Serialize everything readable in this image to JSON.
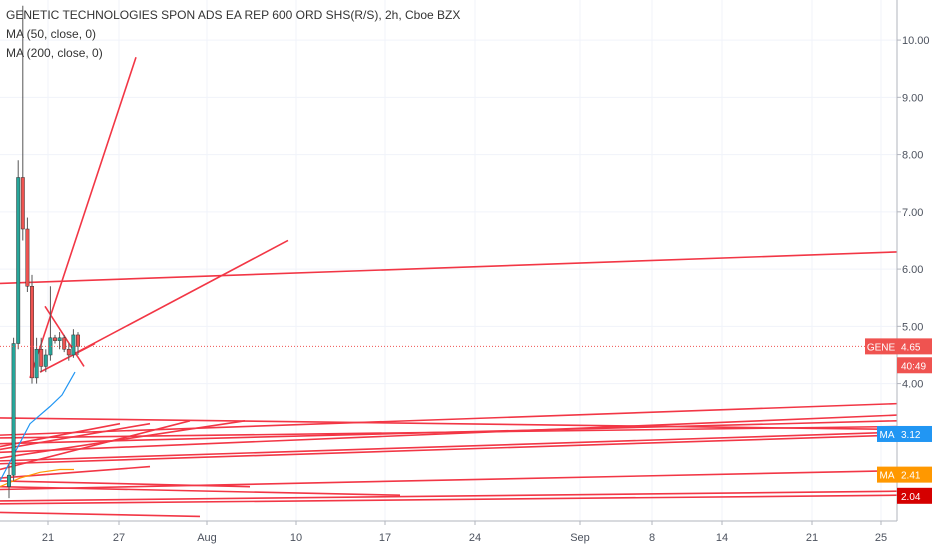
{
  "header": {
    "title": "GENETIC TECHNOLOGIES SPON ADS EA REP 600 ORD SHS(R/S), 2h, Cboe BZX",
    "indicators": [
      "MA (50, close, 0)",
      "MA (200, close, 0)"
    ]
  },
  "chart_data": {
    "type": "candlestick",
    "y_axis": {
      "ticks": [
        "10.00",
        "9.00",
        "8.00",
        "7.00",
        "6.00",
        "5.00",
        "4.00"
      ],
      "tick_values": [
        10,
        9,
        8,
        7,
        6,
        5,
        4
      ],
      "range": [
        1.6,
        10.7
      ]
    },
    "x_axis": {
      "ticks": [
        "21",
        "27",
        "Aug",
        "10",
        "17",
        "24",
        "Sep",
        "8",
        "14",
        "21",
        "25"
      ]
    },
    "last_price": 4.65,
    "price_line_value": 4.65,
    "price_labels": [
      {
        "prefix": "GENE",
        "text": "4.65",
        "value": 4.65,
        "color": "#ef5350"
      },
      {
        "prefix": "",
        "text": "40:49",
        "value": 4.32,
        "color": "#ef5350"
      },
      {
        "prefix": "MA",
        "text": "3.12",
        "value": 3.12,
        "color": "#2196f3"
      },
      {
        "prefix": "MA",
        "text": "2.41",
        "value": 2.41,
        "color": "#ff9800"
      },
      {
        "prefix": "",
        "text": "2.04",
        "value": 2.04,
        "color": "#d50000"
      }
    ],
    "candles": [
      {
        "o": 2.2,
        "h": 2.6,
        "l": 2.0,
        "c": 2.4
      },
      {
        "o": 2.4,
        "h": 4.8,
        "l": 2.3,
        "c": 4.7
      },
      {
        "o": 4.7,
        "h": 7.9,
        "l": 4.6,
        "c": 7.6
      },
      {
        "o": 7.6,
        "h": 10.6,
        "l": 6.5,
        "c": 6.7
      },
      {
        "o": 6.7,
        "h": 6.9,
        "l": 5.6,
        "c": 5.7
      },
      {
        "o": 5.7,
        "h": 5.9,
        "l": 4.0,
        "c": 4.1
      },
      {
        "o": 4.1,
        "h": 4.8,
        "l": 4.0,
        "c": 4.6
      },
      {
        "o": 4.6,
        "h": 4.8,
        "l": 4.2,
        "c": 4.3
      },
      {
        "o": 4.3,
        "h": 4.6,
        "l": 4.2,
        "c": 4.5
      },
      {
        "o": 4.5,
        "h": 5.7,
        "l": 4.4,
        "c": 4.8
      },
      {
        "o": 4.8,
        "h": 4.85,
        "l": 4.7,
        "c": 4.75
      },
      {
        "o": 4.75,
        "h": 4.9,
        "l": 4.6,
        "c": 4.8
      },
      {
        "o": 4.8,
        "h": 4.85,
        "l": 4.55,
        "c": 4.6
      },
      {
        "o": 4.6,
        "h": 4.7,
        "l": 4.4,
        "c": 4.5
      },
      {
        "o": 4.5,
        "h": 4.95,
        "l": 4.45,
        "c": 4.85
      },
      {
        "o": 4.85,
        "h": 4.9,
        "l": 4.5,
        "c": 4.65
      }
    ],
    "ma50": [
      [
        0,
        2.3
      ],
      [
        12,
        2.7
      ],
      [
        30,
        3.3
      ],
      [
        50,
        3.6
      ],
      [
        62,
        3.8
      ],
      [
        75,
        4.2
      ]
    ],
    "ma200": [
      [
        0,
        2.2
      ],
      [
        20,
        2.35
      ],
      [
        40,
        2.45
      ],
      [
        60,
        2.5
      ],
      [
        74,
        2.5
      ]
    ],
    "trendlines": [
      {
        "x1": 30,
        "y1": 4.1,
        "x2": 136,
        "y2": 9.7
      },
      {
        "x1": 72,
        "y1": 4.5,
        "x2": 288,
        "y2": 6.5
      },
      {
        "x1": 0,
        "y1": 5.75,
        "x2": 897,
        "y2": 6.3
      },
      {
        "x1": 45,
        "y1": 5.35,
        "x2": 84,
        "y2": 4.3
      },
      {
        "x1": 40,
        "y1": 4.2,
        "x2": 95,
        "y2": 4.7
      },
      {
        "x1": 0,
        "y1": 3.4,
        "x2": 897,
        "y2": 3.2
      },
      {
        "x1": 0,
        "y1": 3.1,
        "x2": 897,
        "y2": 3.65
      },
      {
        "x1": 0,
        "y1": 3.05,
        "x2": 897,
        "y2": 3.25
      },
      {
        "x1": 0,
        "y1": 2.95,
        "x2": 897,
        "y2": 3.35
      },
      {
        "x1": 0,
        "y1": 2.8,
        "x2": 897,
        "y2": 3.45
      },
      {
        "x1": 0,
        "y1": 2.65,
        "x2": 897,
        "y2": 3.15
      },
      {
        "x1": 0,
        "y1": 2.6,
        "x2": 897,
        "y2": 3.1
      },
      {
        "x1": 0,
        "y1": 2.5,
        "x2": 190,
        "y2": 3.35
      },
      {
        "x1": 0,
        "y1": 2.7,
        "x2": 245,
        "y2": 3.35
      },
      {
        "x1": 0,
        "y1": 2.85,
        "x2": 150,
        "y2": 3.3
      },
      {
        "x1": 0,
        "y1": 2.9,
        "x2": 120,
        "y2": 3.3
      },
      {
        "x1": 0,
        "y1": 2.3,
        "x2": 250,
        "y2": 2.2
      },
      {
        "x1": 0,
        "y1": 2.15,
        "x2": 897,
        "y2": 2.48
      },
      {
        "x1": 0,
        "y1": 2.2,
        "x2": 400,
        "y2": 2.05
      },
      {
        "x1": 0,
        "y1": 1.95,
        "x2": 897,
        "y2": 2.12
      },
      {
        "x1": 0,
        "y1": 1.9,
        "x2": 897,
        "y2": 2.05
      },
      {
        "x1": 0,
        "y1": 2.35,
        "x2": 150,
        "y2": 2.55
      },
      {
        "x1": 0,
        "y1": 1.75,
        "x2": 200,
        "y2": 1.68
      }
    ]
  }
}
